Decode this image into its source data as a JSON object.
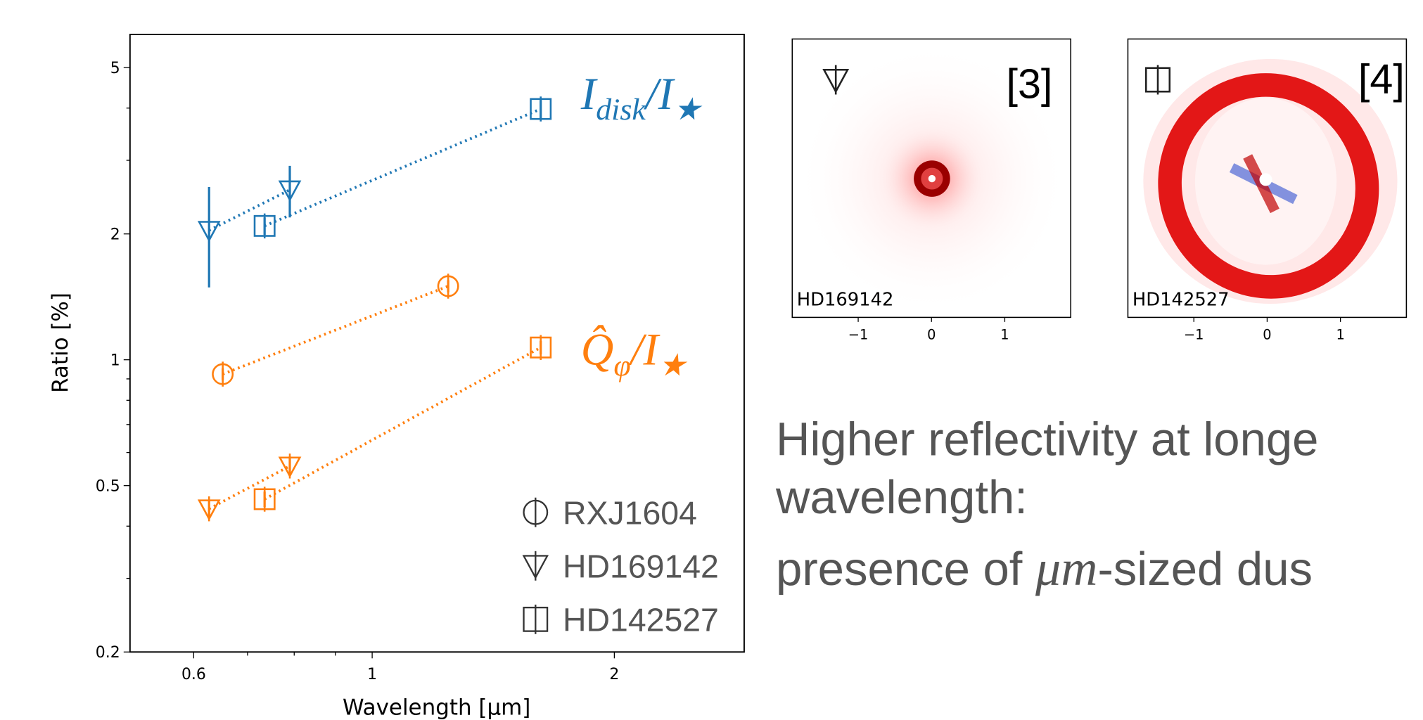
{
  "chart_data": {
    "type": "scatter",
    "xlabel": "Wavelength [μm]",
    "ylabel": "Ratio [%]",
    "xscale": "log",
    "yscale": "log",
    "xlim": [
      0.5,
      2.9
    ],
    "ylim": [
      0.2,
      6
    ],
    "xticks": [
      0.6,
      1,
      2
    ],
    "yticks": [
      0.2,
      0.5,
      1,
      2,
      5
    ],
    "xminorticks": [
      0.7,
      0.8,
      0.9
    ],
    "yminorticks": [
      0.3,
      0.4,
      0.6,
      0.7,
      0.8,
      0.9,
      3,
      4
    ],
    "legend_position": "lower right",
    "legend": [
      {
        "name": "RXJ1604",
        "marker": "circle"
      },
      {
        "name": "HD169142",
        "marker": "triangle"
      },
      {
        "name": "HD142527",
        "marker": "square"
      }
    ],
    "groups": [
      {
        "label_parts": [
          "I",
          "disk",
          "/I",
          "★"
        ],
        "color": "#1f77b4",
        "series": [
          {
            "marker": "triangle",
            "x": [
              0.627,
              0.79
            ],
            "values": [
              2.04,
              2.55
            ],
            "errors": [
              0.55,
              0.36
            ]
          },
          {
            "marker": "square",
            "x": [
              0.735,
              1.62
            ],
            "values": [
              2.09,
              3.98
            ],
            "errors": [
              0.1,
              0.2
            ]
          }
        ]
      },
      {
        "label_parts": [
          "Q̂",
          "φ",
          "/I",
          "★"
        ],
        "color": "#ff7f0e",
        "series": [
          {
            "marker": "circle",
            "x": [
              0.652,
              1.243
            ],
            "values": [
              0.924,
              1.5
            ],
            "errors": [
              0.03,
              0.05
            ]
          },
          {
            "marker": "triangle",
            "x": [
              0.627,
              0.79
            ],
            "values": [
              0.44,
              0.557
            ],
            "errors": [
              0.02,
              0.03
            ]
          },
          {
            "marker": "square",
            "x": [
              0.735,
              1.62
            ],
            "values": [
              0.464,
              1.07
            ],
            "errors": [
              0.02,
              0.04
            ]
          }
        ]
      }
    ]
  },
  "panels": [
    {
      "tag": "[3]",
      "name": "HD169142",
      "marker": "triangle",
      "xlim": [
        -1.9,
        1.9
      ],
      "xticks": [
        {
          "value": -1,
          "label": "−1"
        },
        0,
        1
      ]
    },
    {
      "tag": "[4]",
      "name": "HD142527",
      "marker": "square",
      "xlim": [
        -1.9,
        1.9
      ],
      "xticks": [
        {
          "value": -1,
          "label": "−1"
        },
        0,
        1
      ]
    }
  ],
  "text": {
    "line1": "Higher reflectivity at longe",
    "line2": "wavelength:",
    "line3_parts": [
      "presence of ",
      "μm",
      "-sized dus"
    ]
  }
}
